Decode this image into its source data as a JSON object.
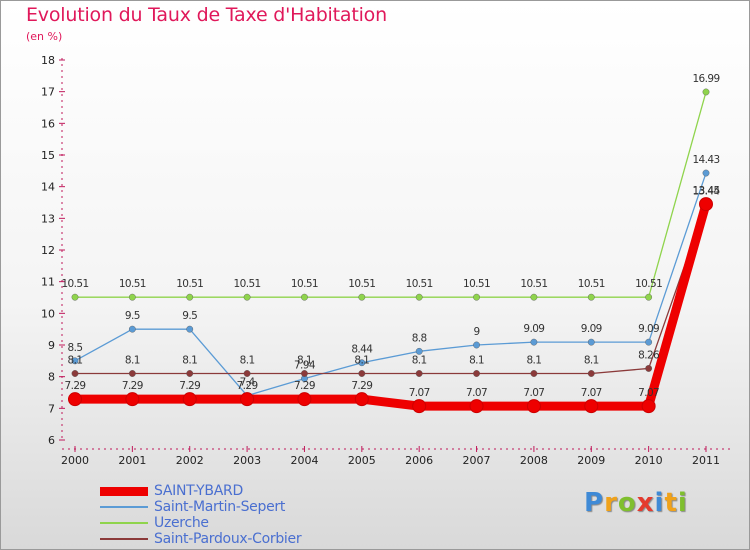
{
  "title": "Evolution du Taux de Taxe d'Habitation",
  "subtitle": "(en %)",
  "logo": {
    "text": "Proxiti",
    "letter_colors": [
      "#3f8ad6",
      "#f0a21a",
      "#7fbf2e",
      "#e43a2e",
      "#3f8ad6",
      "#f0a21a",
      "#7fbf2e"
    ]
  },
  "chart_data": {
    "type": "line",
    "x": [
      "2000",
      "2001",
      "2002",
      "2003",
      "2004",
      "2005",
      "2006",
      "2007",
      "2008",
      "2009",
      "2010",
      "2011"
    ],
    "ylim": [
      6,
      18
    ],
    "yticks": [
      6,
      7,
      8,
      9,
      10,
      11,
      12,
      13,
      14,
      15,
      16,
      17,
      18
    ],
    "grid": false,
    "legend_position": "bottom-left",
    "series": [
      {
        "name": "SAINT-YBARD",
        "color": "#ee0000",
        "values": [
          7.29,
          7.29,
          7.29,
          7.29,
          7.29,
          7.29,
          7.07,
          7.07,
          7.07,
          7.07,
          7.07,
          13.45
        ],
        "labels": [
          "7.29",
          "7.29",
          "7.29",
          "7.29",
          "7.29",
          "7.29",
          "7.07",
          "7.07",
          "7.07",
          "7.07",
          "7.07",
          "13.45"
        ]
      },
      {
        "name": "Saint-Martin-Sepert",
        "color": "#5b9bd5",
        "values": [
          8.5,
          9.5,
          9.5,
          7.4,
          7.94,
          8.44,
          8.8,
          9,
          9.09,
          9.09,
          9.09,
          14.43
        ],
        "labels": [
          "8.5",
          "9.5",
          "9.5",
          "7.4",
          "7.94",
          "8.44",
          "8.8",
          "9",
          "9.09",
          "9.09",
          "9.09",
          "14.43"
        ]
      },
      {
        "name": "Uzerche",
        "color": "#8fd44c",
        "values": [
          10.51,
          10.51,
          10.51,
          10.51,
          10.51,
          10.51,
          10.51,
          10.51,
          10.51,
          10.51,
          10.51,
          16.99
        ],
        "labels": [
          "10.51",
          "10.51",
          "10.51",
          "10.51",
          "10.51",
          "10.51",
          "10.51",
          "10.51",
          "10.51",
          "10.51",
          "10.51",
          "16.99"
        ]
      },
      {
        "name": "Saint-Pardoux-Corbier",
        "color": "#8b3a3a",
        "values": [
          8.1,
          8.1,
          8.1,
          8.1,
          8.1,
          8.1,
          8.1,
          8.1,
          8.1,
          8.1,
          8.26,
          13.44
        ],
        "labels": [
          "8.1",
          "8.1",
          "8.1",
          "8.1",
          "8.1",
          "8.1",
          "8.1",
          "8.1",
          "8.1",
          "8.1",
          "8.26",
          "13.44"
        ]
      }
    ]
  }
}
